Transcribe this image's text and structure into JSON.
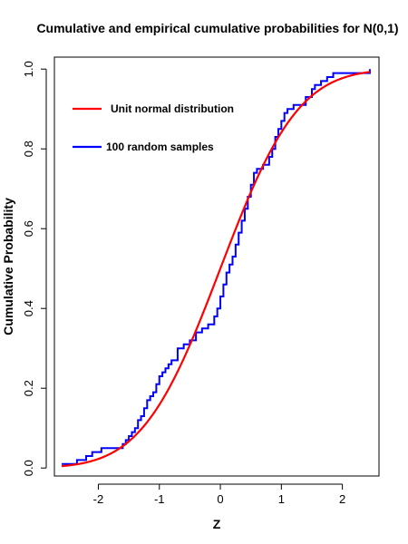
{
  "chart_data": {
    "type": "line",
    "title": "Cumulative and empirical cumulative probabilities for N(0,1)",
    "xlabel": "Z",
    "ylabel": "Cumulative Probability",
    "xlim": [
      -2.72,
      2.6
    ],
    "ylim": [
      -0.02,
      1.03
    ],
    "x_ticks": [
      -2,
      -1,
      0,
      1,
      2
    ],
    "y_ticks": [
      0.0,
      0.2,
      0.4,
      0.6,
      0.8,
      1.0
    ],
    "x_tick_labels": [
      "-2",
      "-1",
      "0",
      "1",
      "2"
    ],
    "y_tick_labels": [
      "0.0",
      "0.2",
      "0.4",
      "0.6",
      "0.8",
      "1.0"
    ],
    "grid": false,
    "legend_position": "top-left",
    "series": [
      {
        "name": "Unit normal distribution",
        "kind": "normal_cdf",
        "color": "#ff0000",
        "x_range": [
          -2.6,
          2.45
        ]
      },
      {
        "name": "100 random samples",
        "kind": "ecdf_step",
        "color": "#0000ff",
        "x": [
          -2.6,
          -2.35,
          -2.2,
          -2.1,
          -1.95,
          -1.6,
          -1.55,
          -1.5,
          -1.45,
          -1.4,
          -1.35,
          -1.3,
          -1.25,
          -1.2,
          -1.15,
          -1.1,
          -1.05,
          -1.0,
          -0.95,
          -0.9,
          -0.85,
          -0.8,
          -0.7,
          -0.6,
          -0.5,
          -0.4,
          -0.3,
          -0.2,
          -0.1,
          -0.05,
          0.0,
          0.05,
          0.1,
          0.15,
          0.2,
          0.25,
          0.3,
          0.35,
          0.4,
          0.45,
          0.5,
          0.55,
          0.6,
          0.7,
          0.8,
          0.85,
          0.9,
          0.95,
          1.0,
          1.05,
          1.1,
          1.2,
          1.4,
          1.5,
          1.55,
          1.65,
          1.75,
          1.85,
          2.0,
          2.45
        ],
        "y": [
          0.01,
          0.02,
          0.03,
          0.04,
          0.05,
          0.06,
          0.07,
          0.08,
          0.09,
          0.1,
          0.12,
          0.13,
          0.15,
          0.17,
          0.18,
          0.19,
          0.21,
          0.23,
          0.24,
          0.25,
          0.26,
          0.27,
          0.3,
          0.31,
          0.32,
          0.34,
          0.35,
          0.36,
          0.38,
          0.4,
          0.43,
          0.46,
          0.49,
          0.51,
          0.53,
          0.56,
          0.59,
          0.62,
          0.65,
          0.68,
          0.71,
          0.74,
          0.75,
          0.76,
          0.78,
          0.8,
          0.83,
          0.85,
          0.87,
          0.89,
          0.9,
          0.91,
          0.93,
          0.95,
          0.96,
          0.97,
          0.98,
          0.99,
          0.99,
          1.0
        ]
      }
    ]
  }
}
